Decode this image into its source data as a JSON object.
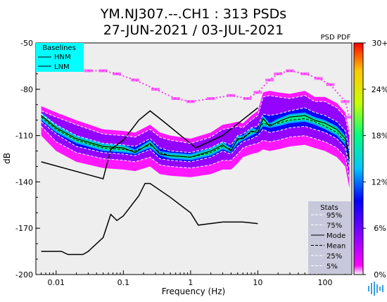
{
  "chart_data": {
    "type": "heatmap",
    "title_line1": "YM.NJ307.--.CH1 : 313 PSDs",
    "title_line2": "27-JUN-2021 / 03-JUL-2021",
    "xlabel": "Frequency (Hz)",
    "ylabel": "dB",
    "x_scale": "log",
    "xlim": [
      0.005,
      250
    ],
    "ylim": [
      -200,
      -50
    ],
    "x_ticks": [
      {
        "value": 0.01,
        "label": "0.01"
      },
      {
        "value": 0.1,
        "label": "0.1"
      },
      {
        "value": 1,
        "label": "1"
      },
      {
        "value": 10,
        "label": "10"
      },
      {
        "value": 100,
        "label": "100"
      }
    ],
    "y_ticks": [
      {
        "value": -50,
        "label": "-50"
      },
      {
        "value": -80,
        "label": "-80"
      },
      {
        "value": -110,
        "label": "-110"
      },
      {
        "value": -140,
        "label": "-140"
      },
      {
        "value": -170,
        "label": "-170"
      },
      {
        "value": -200,
        "label": "-200"
      }
    ],
    "colorbar": {
      "title": "PSD PDF",
      "range": [
        0,
        30
      ],
      "ticks": [
        {
          "value": 0,
          "label": "0%"
        },
        {
          "value": 6,
          "label": "6%"
        },
        {
          "value": 12,
          "label": "12%"
        },
        {
          "value": 18,
          "label": "18%"
        },
        {
          "value": 24,
          "label": "24%"
        },
        {
          "value": 30,
          "label": "30+"
        }
      ],
      "colormap": [
        "#ffffff",
        "#ff00ff",
        "#8000ff",
        "#0000ff",
        "#00c8ff",
        "#00ff80",
        "#c8ff00",
        "#ffc800",
        "#ff0000"
      ]
    },
    "baselines_legend": {
      "title": "Baselines",
      "items": [
        "HNM",
        "LNM"
      ],
      "background": "#00ffff"
    },
    "stats_legend": {
      "title": "Stats",
      "items": [
        {
          "label": "95%",
          "style": "dash-white"
        },
        {
          "label": "75%",
          "style": "dash-white"
        },
        {
          "label": "Mode",
          "style": "solid-black"
        },
        {
          "label": "Mean",
          "style": "dash-black"
        },
        {
          "label": "25%",
          "style": "dash-white"
        },
        {
          "label": "5%",
          "style": "dash-white"
        }
      ],
      "background": "#c8c8dc"
    },
    "series": [
      {
        "name": "HNM",
        "x": [
          0.006,
          0.05,
          0.065,
          0.1,
          0.17,
          0.25,
          0.4,
          1.2,
          3,
          10
        ],
        "y": [
          -127,
          -138,
          -119,
          -113,
          -100,
          -94,
          -101,
          -118,
          -110,
          -92
        ]
      },
      {
        "name": "LNM",
        "x": [
          0.006,
          0.012,
          0.015,
          0.025,
          0.03,
          0.05,
          0.065,
          0.08,
          0.1,
          0.17,
          0.21,
          0.25,
          0.5,
          1,
          1.3,
          3,
          6,
          10
        ],
        "y": [
          -185,
          -185,
          -187,
          -187,
          -185,
          -176,
          -161,
          -165,
          -162,
          -149,
          -141,
          -141,
          -150,
          -160,
          -168,
          -166,
          -166,
          -167
        ]
      },
      {
        "name": "Mode",
        "x": [
          0.006,
          0.01,
          0.02,
          0.05,
          0.1,
          0.15,
          0.25,
          0.35,
          0.5,
          1,
          2,
          3,
          4,
          5,
          6,
          8,
          10,
          12,
          15,
          20,
          30,
          50,
          70,
          100,
          150,
          200,
          230
        ],
        "y": [
          -97,
          -105,
          -112,
          -117,
          -118,
          -121,
          -115,
          -122,
          -123,
          -124,
          -120,
          -116,
          -120,
          -112,
          -112,
          -107,
          -108,
          -99,
          -104,
          -101,
          -98,
          -97,
          -100,
          -102,
          -106,
          -112,
          -125
        ]
      },
      {
        "name": "Mean",
        "x": [
          0.006,
          0.01,
          0.02,
          0.05,
          0.1,
          0.15,
          0.25,
          0.35,
          0.5,
          1,
          2,
          3,
          4,
          5,
          6,
          8,
          10,
          12,
          15,
          20,
          30,
          50,
          70,
          100,
          150,
          200,
          230
        ],
        "y": [
          -98,
          -106,
          -113,
          -118,
          -119,
          -120,
          -116,
          -121,
          -123,
          -124,
          -121,
          -117,
          -119,
          -113,
          -111,
          -108,
          -106,
          -102,
          -103,
          -102,
          -100,
          -99,
          -101,
          -104,
          -108,
          -114,
          -127
        ]
      },
      {
        "name": "95%",
        "x": [
          0.006,
          0.01,
          0.02,
          0.05,
          0.1,
          0.15,
          0.25,
          0.35,
          0.5,
          1,
          2,
          3,
          4,
          5,
          6,
          8,
          10,
          12,
          15,
          20,
          30,
          50,
          70,
          100,
          150,
          200,
          230
        ],
        "y": [
          -94,
          -98,
          -103,
          -109,
          -110,
          -111,
          -106,
          -111,
          -113,
          -115,
          -111,
          -106,
          -105,
          -104,
          -105,
          -100,
          -97,
          -85,
          -84,
          -85,
          -86,
          -84,
          -88,
          -88,
          -92,
          -98,
          -110
        ]
      },
      {
        "name": "75%",
        "x": [
          0.006,
          0.01,
          0.02,
          0.05,
          0.1,
          0.15,
          0.25,
          0.35,
          0.5,
          1,
          2,
          3,
          4,
          5,
          6,
          8,
          10,
          12,
          15,
          20,
          30,
          50,
          70,
          100,
          150,
          200,
          230
        ],
        "y": [
          -96,
          -103,
          -110,
          -115,
          -116,
          -117,
          -112,
          -118,
          -120,
          -121,
          -118,
          -114,
          -116,
          -110,
          -109,
          -105,
          -104,
          -96,
          -97,
          -96,
          -94,
          -92,
          -95,
          -97,
          -101,
          -107,
          -120
        ]
      },
      {
        "name": "25%",
        "x": [
          0.006,
          0.01,
          0.02,
          0.05,
          0.1,
          0.15,
          0.25,
          0.35,
          0.5,
          1,
          2,
          3,
          4,
          5,
          6,
          8,
          10,
          12,
          15,
          20,
          30,
          50,
          70,
          100,
          150,
          200,
          230
        ],
        "y": [
          -101,
          -109,
          -117,
          -121,
          -122,
          -123,
          -119,
          -125,
          -126,
          -127,
          -124,
          -120,
          -122,
          -117,
          -114,
          -112,
          -110,
          -106,
          -108,
          -107,
          -105,
          -104,
          -106,
          -108,
          -112,
          -118,
          -131
        ]
      },
      {
        "name": "5%",
        "x": [
          0.006,
          0.01,
          0.02,
          0.05,
          0.1,
          0.15,
          0.25,
          0.35,
          0.5,
          1,
          2,
          3,
          4,
          5,
          6,
          8,
          10,
          12,
          15,
          20,
          30,
          50,
          70,
          100,
          150,
          200,
          230
        ],
        "y": [
          -104,
          -114,
          -121,
          -125,
          -126,
          -127,
          -124,
          -129,
          -130,
          -131,
          -129,
          -126,
          -126,
          -122,
          -118,
          -116,
          -115,
          -113,
          -114,
          -113,
          -111,
          -110,
          -112,
          -114,
          -118,
          -124,
          -138
        ]
      },
      {
        "name": "outlier",
        "x": [
          0.03,
          0.05,
          0.08,
          0.15,
          0.3,
          0.6,
          1,
          2,
          4,
          7,
          10,
          15,
          20,
          30,
          50,
          80,
          120,
          200,
          230
        ],
        "y": [
          -68,
          -68,
          -70,
          -74,
          -80,
          -86,
          -88,
          -86,
          -84,
          -86,
          -82,
          -74,
          -70,
          -68,
          -70,
          -73,
          -77,
          -88,
          -98
        ]
      }
    ]
  }
}
